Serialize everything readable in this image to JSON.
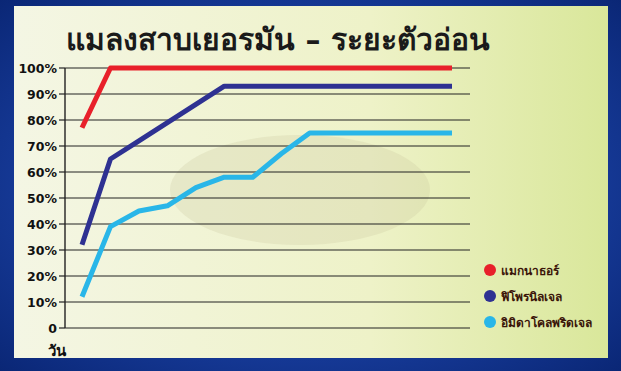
{
  "chart_data": {
    "type": "line",
    "title": "แมลงสาบเยอรมัน – ระยะตัวอ่อน",
    "x_label": "วัน",
    "categories": [
      null,
      null,
      null,
      null,
      null,
      null,
      null,
      null,
      null,
      null,
      null,
      null,
      null,
      null
    ],
    "series": [
      {
        "name": "แมกนาธอร์",
        "color": "#e8202a",
        "values": [
          77,
          100,
          100,
          100,
          100,
          100,
          100,
          100,
          100,
          100,
          100,
          100,
          100,
          100
        ]
      },
      {
        "name": "ฟิโพรนิลเจล",
        "color": "#2e3192",
        "values": [
          32,
          65,
          72,
          79,
          86,
          93,
          93,
          93,
          93,
          93,
          93,
          93,
          93,
          93
        ]
      },
      {
        "name": "อิมิดาโคลพริดเจล",
        "color": "#29b6e8",
        "values": [
          12,
          39,
          45,
          47,
          54,
          58,
          58,
          67,
          75,
          75,
          75,
          75,
          75,
          75
        ]
      }
    ],
    "ylim": [
      0,
      100
    ],
    "yticks": [
      0,
      {
        "value": 10,
        "label": "10%"
      },
      {
        "value": 20,
        "label": "20%"
      },
      {
        "value": 30,
        "label": "30%"
      },
      {
        "value": 40,
        "label": "40%"
      },
      {
        "value": 50,
        "label": "50%"
      },
      {
        "value": 60,
        "label": "60%"
      },
      {
        "value": 70,
        "label": "70%"
      },
      {
        "value": 80,
        "label": "80%"
      },
      {
        "value": 90,
        "label": "90%"
      },
      {
        "value": 100,
        "label": "100%"
      }
    ],
    "grid": true,
    "legend": "lower right"
  }
}
